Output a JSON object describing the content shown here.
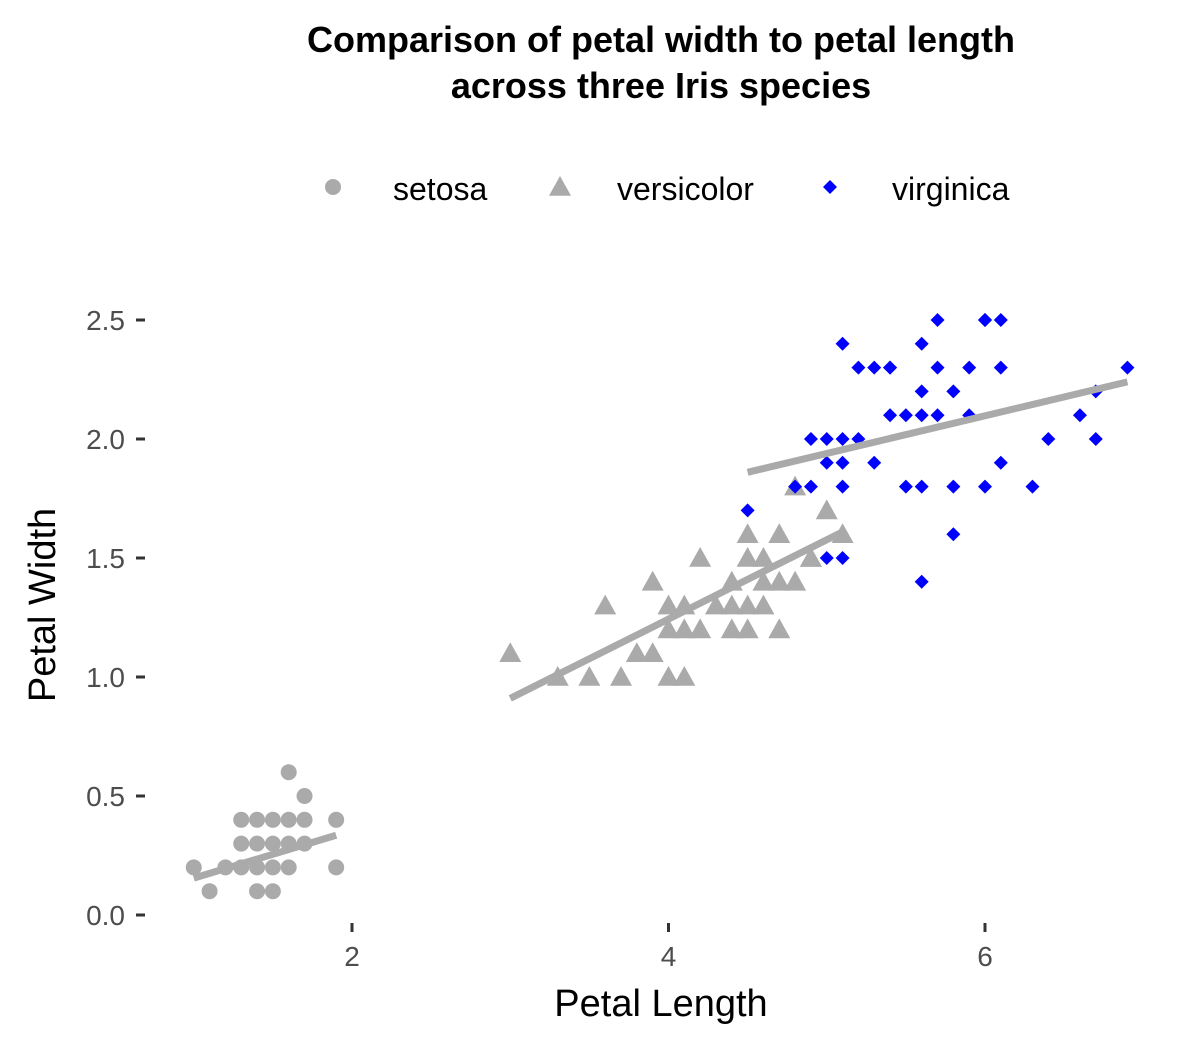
{
  "chart_data": {
    "type": "scatter",
    "title": [
      "Comparison of petal width to petal length",
      "across three Iris species"
    ],
    "xlabel": "Petal Length",
    "ylabel": "Petal Width",
    "xlim": [
      0.7,
      7.1
    ],
    "ylim": [
      0,
      2.6
    ],
    "xticks": [
      2,
      4,
      6
    ],
    "xtick_labels": [
      "2",
      "4",
      "6"
    ],
    "yticks": [
      0,
      0.5,
      1,
      1.5,
      2,
      2.5
    ],
    "ytick_labels": [
      "0.0",
      "0.5",
      "1.0",
      "1.5",
      "2.0",
      "2.5"
    ],
    "grid": false,
    "legend_position": "top",
    "series": [
      {
        "name": "setosa",
        "shape": "circle",
        "color": "#aaaaaa",
        "points": [
          [
            1.4,
            0.2
          ],
          [
            1.3,
            0.2
          ],
          [
            1.5,
            0.2
          ],
          [
            1.7,
            0.4
          ],
          [
            1.4,
            0.3
          ],
          [
            1.5,
            0.1
          ],
          [
            1.6,
            0.2
          ],
          [
            1.1,
            0.1
          ],
          [
            1.2,
            0.2
          ],
          [
            1.3,
            0.4
          ],
          [
            1.7,
            0.3
          ],
          [
            1.0,
            0.2
          ],
          [
            1.9,
            0.2
          ],
          [
            1.6,
            0.4
          ],
          [
            1.5,
            0.4
          ],
          [
            1.4,
            0.1
          ],
          [
            1.6,
            0.6
          ],
          [
            1.9,
            0.4
          ],
          [
            1.6,
            0.3
          ],
          [
            1.7,
            0.5
          ],
          [
            1.5,
            0.3
          ],
          [
            1.4,
            0.4
          ],
          [
            1.3,
            0.3
          ]
        ],
        "trend": [
          [
            1.0,
            0.155
          ],
          [
            1.9,
            0.335
          ]
        ]
      },
      {
        "name": "versicolor",
        "shape": "triangle",
        "color": "#aaaaaa",
        "points": [
          [
            4.7,
            1.4
          ],
          [
            4.5,
            1.5
          ],
          [
            4.9,
            1.5
          ],
          [
            4.0,
            1.3
          ],
          [
            4.6,
            1.5
          ],
          [
            3.3,
            1.0
          ],
          [
            4.4,
            1.4
          ],
          [
            3.9,
            1.4
          ],
          [
            3.5,
            1.0
          ],
          [
            4.2,
            1.5
          ],
          [
            4.0,
            1.0
          ],
          [
            3.6,
            1.3
          ],
          [
            4.5,
            1.3
          ],
          [
            4.1,
            1.0
          ],
          [
            3.9,
            1.1
          ],
          [
            4.8,
            1.8
          ],
          [
            4.0,
            1.2
          ],
          [
            4.9,
            1.5
          ],
          [
            4.7,
            1.2
          ],
          [
            4.3,
            1.3
          ],
          [
            4.4,
            1.3
          ],
          [
            5.0,
            1.7
          ],
          [
            3.8,
            1.1
          ],
          [
            3.7,
            1.0
          ],
          [
            5.1,
            1.6
          ],
          [
            4.5,
            1.6
          ],
          [
            4.7,
            1.6
          ],
          [
            4.4,
            1.2
          ],
          [
            4.1,
            1.3
          ],
          [
            4.6,
            1.4
          ],
          [
            4.2,
            1.2
          ],
          [
            3.0,
            1.1
          ],
          [
            4.6,
            1.3
          ],
          [
            4.5,
            1.2
          ],
          [
            4.8,
            1.4
          ],
          [
            4.1,
            1.2
          ]
        ],
        "trend": [
          [
            3.0,
            0.91
          ],
          [
            5.1,
            1.61
          ]
        ]
      },
      {
        "name": "virginica",
        "shape": "diamond",
        "color": "#0000ff",
        "points": [
          [
            6.0,
            2.5
          ],
          [
            5.1,
            1.9
          ],
          [
            5.9,
            2.1
          ],
          [
            5.6,
            1.8
          ],
          [
            5.8,
            2.2
          ],
          [
            6.6,
            2.1
          ],
          [
            4.5,
            1.7
          ],
          [
            6.3,
            1.8
          ],
          [
            5.8,
            1.8
          ],
          [
            6.1,
            2.5
          ],
          [
            5.1,
            2.0
          ],
          [
            5.3,
            1.9
          ],
          [
            5.5,
            2.1
          ],
          [
            5.0,
            2.0
          ],
          [
            5.1,
            2.4
          ],
          [
            5.3,
            2.3
          ],
          [
            6.7,
            2.2
          ],
          [
            6.9,
            2.3
          ],
          [
            5.0,
            1.5
          ],
          [
            5.7,
            2.3
          ],
          [
            4.9,
            2.0
          ],
          [
            6.7,
            2.0
          ],
          [
            4.9,
            1.8
          ],
          [
            5.7,
            2.1
          ],
          [
            6.0,
            1.8
          ],
          [
            4.8,
            1.8
          ],
          [
            5.6,
            2.1
          ],
          [
            5.8,
            1.6
          ],
          [
            6.1,
            1.9
          ],
          [
            6.4,
            2.0
          ],
          [
            5.6,
            2.2
          ],
          [
            5.1,
            1.5
          ],
          [
            5.6,
            1.4
          ],
          [
            6.1,
            2.3
          ],
          [
            5.6,
            2.4
          ],
          [
            5.5,
            1.8
          ],
          [
            5.4,
            2.1
          ],
          [
            5.4,
            2.3
          ],
          [
            5.2,
            2.3
          ],
          [
            5.2,
            2.0
          ],
          [
            5.7,
            2.5
          ],
          [
            5.9,
            2.3
          ],
          [
            5.0,
            1.9
          ],
          [
            6.0,
            2.5
          ],
          [
            5.1,
            1.8
          ],
          [
            5.4,
            2.3
          ]
        ],
        "trend": [
          [
            4.5,
            1.86
          ],
          [
            6.9,
            2.24
          ]
        ]
      }
    ]
  }
}
